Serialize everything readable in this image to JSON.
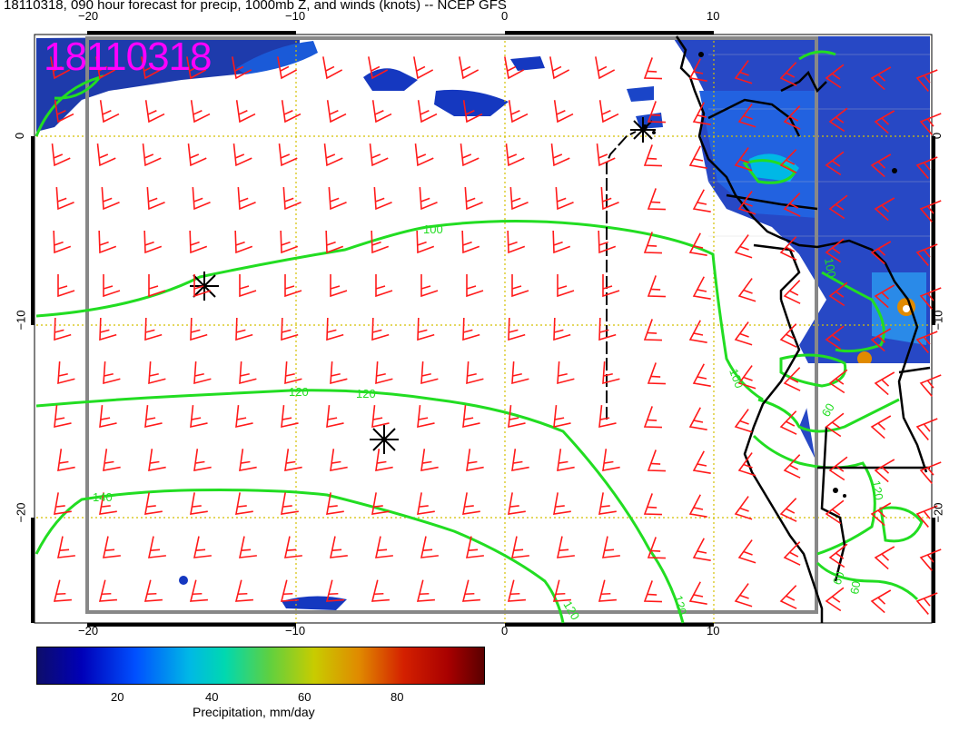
{
  "title": "18110318, 090 hour forecast for precip, 1000mb Z, and winds (knots) -- NCEP GFS",
  "stamp": "18110318",
  "axes": {
    "top_ticks": [
      "−20",
      "−10",
      "0",
      "10"
    ],
    "bottom_ticks": [
      "−20",
      "−10",
      "0",
      "10"
    ],
    "left_ticks": [
      "0",
      "−10",
      "−20"
    ],
    "right_ticks": [
      "0",
      "−10",
      "−20"
    ]
  },
  "contours": {
    "color": "#22dd22",
    "labels": [
      "100",
      "120",
      "120",
      "140",
      "120",
      "120",
      "100",
      "60",
      "60",
      "120",
      "60",
      "100"
    ]
  },
  "barb_color": "#ff1a1a",
  "colorbar": {
    "ticks": [
      "20",
      "40",
      "60",
      "80"
    ],
    "label": "Precipitation, mm/day",
    "range": [
      0,
      97
    ]
  }
}
